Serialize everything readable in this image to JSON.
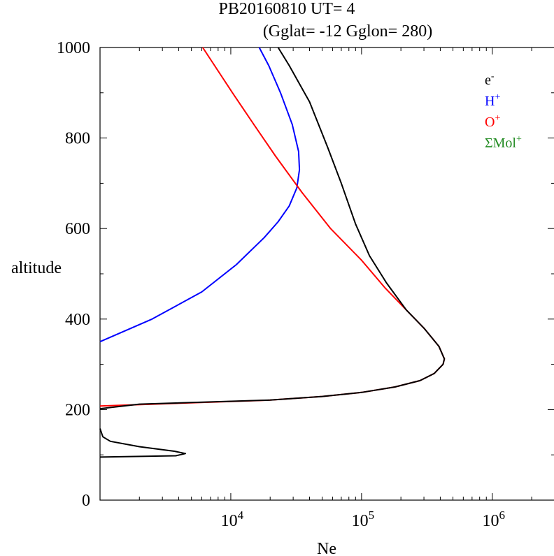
{
  "header": {
    "line1": "PB20160810   UT=  4",
    "line2": "(Gglat= -12   Gglon=  280)"
  },
  "chart_data": {
    "type": "line",
    "title": "PB20160810   UT=  4 (Gglat= -12   Gglon=  280)",
    "xlabel": "Ne",
    "ylabel": "altitude",
    "xscale": "log",
    "xlim": [
      1000,
      3000000
    ],
    "ylim": [
      0,
      1000
    ],
    "grid": false,
    "legend_position": "top-right",
    "y_ticks": [
      0,
      200,
      400,
      600,
      800,
      1000
    ],
    "x_ticks": [
      {
        "value": 10000,
        "base": "10",
        "exp": "4"
      },
      {
        "value": 100000,
        "base": "10",
        "exp": "5"
      },
      {
        "value": 1000000,
        "base": "10",
        "exp": "6"
      }
    ],
    "series": [
      {
        "name": "H+",
        "legend_base": "H",
        "legend_sup": "+",
        "color": "#0000ff",
        "points": [
          [
            1000,
            350
          ],
          [
            2500,
            400
          ],
          [
            6000,
            460
          ],
          [
            11000,
            520
          ],
          [
            18000,
            580
          ],
          [
            23000,
            615
          ],
          [
            28000,
            650
          ],
          [
            32000,
            690
          ],
          [
            33500,
            730
          ],
          [
            33000,
            770
          ],
          [
            29500,
            830
          ],
          [
            24000,
            900
          ],
          [
            19500,
            960
          ],
          [
            16500,
            1000
          ]
        ]
      },
      {
        "name": "O+",
        "legend_base": "O",
        "legend_sup": "+",
        "color": "#ff0000",
        "points": [
          [
            1000,
            208
          ],
          [
            20000,
            221
          ],
          [
            50000,
            229
          ],
          [
            100000,
            238
          ],
          [
            180000,
            250
          ],
          [
            280000,
            264
          ],
          [
            360000,
            280
          ],
          [
            420000,
            300
          ],
          [
            430000,
            312
          ],
          [
            390000,
            340
          ],
          [
            300000,
            380
          ],
          [
            220000,
            420
          ],
          [
            150000,
            470
          ],
          [
            100000,
            530
          ],
          [
            58000,
            600
          ],
          [
            35000,
            680
          ],
          [
            22000,
            760
          ],
          [
            15000,
            830
          ],
          [
            10300,
            900
          ],
          [
            6100,
            1000
          ]
        ]
      },
      {
        "name": "e-",
        "legend_base": "e",
        "legend_sup": "-",
        "color": "#000000",
        "points": [
          [
            1000,
            95
          ],
          [
            3800,
            98
          ],
          [
            4500,
            103
          ],
          [
            3700,
            108
          ],
          [
            2000,
            118
          ],
          [
            1200,
            130
          ],
          [
            1050,
            140
          ],
          [
            1000,
            158
          ]
        ]
      },
      {
        "name": "e-",
        "legend_base": "e",
        "legend_sup": "-",
        "color": "#000000",
        "points": [
          [
            1000,
            202
          ],
          [
            2000,
            212
          ],
          [
            20000,
            221
          ],
          [
            50000,
            229
          ],
          [
            100000,
            238
          ],
          [
            180000,
            250
          ],
          [
            280000,
            264
          ],
          [
            360000,
            280
          ],
          [
            420000,
            300
          ],
          [
            430000,
            312
          ],
          [
            390000,
            340
          ],
          [
            300000,
            380
          ],
          [
            220000,
            420
          ],
          [
            155000,
            480
          ],
          [
            115000,
            540
          ],
          [
            90000,
            610
          ],
          [
            70000,
            700
          ],
          [
            55000,
            780
          ],
          [
            40000,
            880
          ],
          [
            28000,
            960
          ],
          [
            23000,
            1000
          ]
        ]
      },
      {
        "name": "ΣMol+",
        "legend_base": "ΣMol",
        "legend_sup": "+",
        "color": "#228b22",
        "points": []
      }
    ],
    "legend": [
      {
        "base": "e",
        "sup": "-",
        "color": "#000000"
      },
      {
        "base": "H",
        "sup": "+",
        "color": "#0000ff"
      },
      {
        "base": "O",
        "sup": "+",
        "color": "#ff0000"
      },
      {
        "base": "ΣMol",
        "sup": "+",
        "color": "#228b22"
      }
    ]
  }
}
